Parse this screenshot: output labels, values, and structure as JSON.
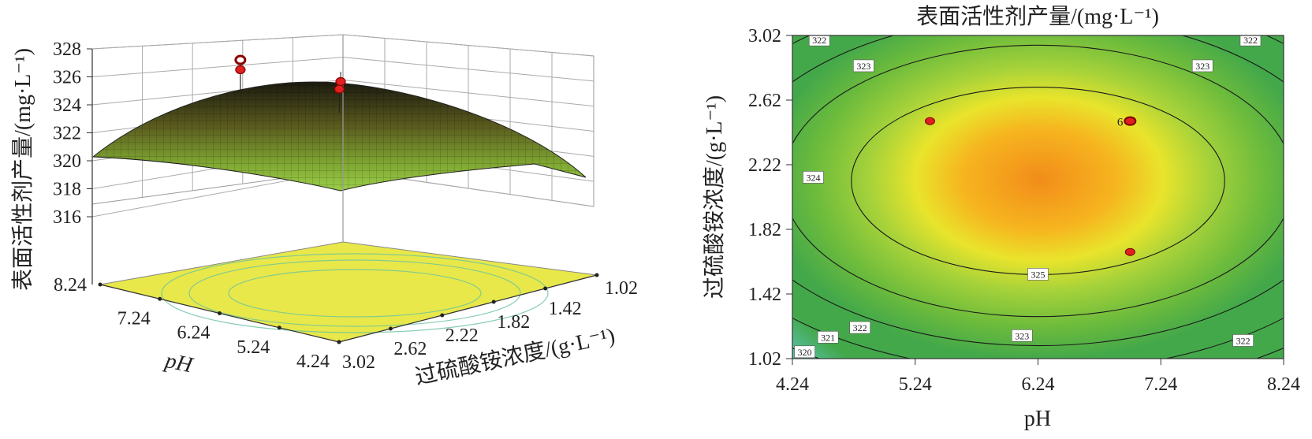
{
  "chart_data": [
    {
      "type": "surface",
      "zlabel": "表面活性剂产量/(mg·L⁻¹)",
      "z_ticks": [
        "316",
        "318",
        "320",
        "322",
        "324",
        "326",
        "328"
      ],
      "zlim": [
        316,
        328
      ],
      "x1label": "pH",
      "x1_ticks": [
        "8.24",
        "7.24",
        "6.24",
        "5.24",
        "4.24"
      ],
      "x2label": "过硫酸铵浓度/(g·L⁻¹)",
      "x2_ticks": [
        "3.02",
        "2.62",
        "2.22",
        "1.82",
        "1.42",
        "1.02"
      ],
      "surface_peak": {
        "pH": 6.3,
        "conc": 2.1,
        "z": 326.0
      },
      "points": [
        {
          "pH": 6.99,
          "conc": 2.49,
          "z": 327.6
        },
        {
          "pH": 6.99,
          "conc": 2.49,
          "z": 326.9
        },
        {
          "pH": 5.36,
          "conc": 2.49,
          "z": 327.0
        },
        {
          "pH": 6.99,
          "conc": 1.68,
          "z": 324.6
        }
      ],
      "colors": {
        "low": "#3d9e4a",
        "mid": "#9fcf2e",
        "high": "#f08a1c",
        "floor": "#e8e84a",
        "point": "#e02020"
      }
    },
    {
      "type": "contour",
      "title": "表面活性剂产量/(mg·L⁻¹)",
      "xlabel": "pH",
      "ylabel": "过硫酸铵浓度/(g·L⁻¹)",
      "x_ticks": [
        "4.24",
        "5.24",
        "6.24",
        "7.24",
        "8.24"
      ],
      "y_ticks": [
        "1.02",
        "1.42",
        "1.82",
        "2.22",
        "2.62",
        "3.02"
      ],
      "xlim": [
        4.24,
        8.24
      ],
      "ylim": [
        1.02,
        3.02
      ],
      "center": {
        "pH": 6.24,
        "conc": 2.12
      },
      "contours": [
        {
          "level": "325",
          "rx_pH": 1.52,
          "ry_conc": 0.58
        },
        {
          "level": "324",
          "rx_pH": 2.08,
          "ry_conc": 0.84
        },
        {
          "level": "323",
          "rx_pH": 2.5,
          "ry_conc": 1.02
        },
        {
          "level": "322",
          "rx_pH": 2.88,
          "ry_conc": 1.18
        },
        {
          "level": "321",
          "rx_pH": 3.22,
          "ry_conc": 1.32
        },
        {
          "level": "320",
          "rx_pH": 3.52,
          "ry_conc": 1.45
        }
      ],
      "label_positions": [
        {
          "text": "322",
          "pH": 4.46,
          "conc": 2.99
        },
        {
          "text": "323",
          "pH": 4.82,
          "conc": 2.83
        },
        {
          "text": "322",
          "pH": 7.97,
          "conc": 2.99
        },
        {
          "text": "323",
          "pH": 7.58,
          "conc": 2.83
        },
        {
          "text": "324",
          "pH": 4.41,
          "conc": 2.14
        },
        {
          "text": "325",
          "pH": 6.24,
          "conc": 1.54
        },
        {
          "text": "322",
          "pH": 4.79,
          "conc": 1.21
        },
        {
          "text": "321",
          "pH": 4.53,
          "conc": 1.15
        },
        {
          "text": "323",
          "pH": 6.11,
          "conc": 1.16
        },
        {
          "text": "322",
          "pH": 7.91,
          "conc": 1.13
        },
        {
          "text": "320",
          "pH": 4.34,
          "conc": 1.06
        }
      ],
      "points": [
        {
          "pH": 5.36,
          "conc": 2.49,
          "label": ""
        },
        {
          "pH": 6.99,
          "conc": 2.49,
          "label": "6"
        },
        {
          "pH": 6.99,
          "conc": 1.68,
          "label": ""
        }
      ],
      "colors": {
        "edge": "#3ea84a",
        "green": "#7fc33a",
        "yellow": "#e8e62a",
        "orange": "#f29a1a",
        "point": "#e02020"
      }
    }
  ]
}
